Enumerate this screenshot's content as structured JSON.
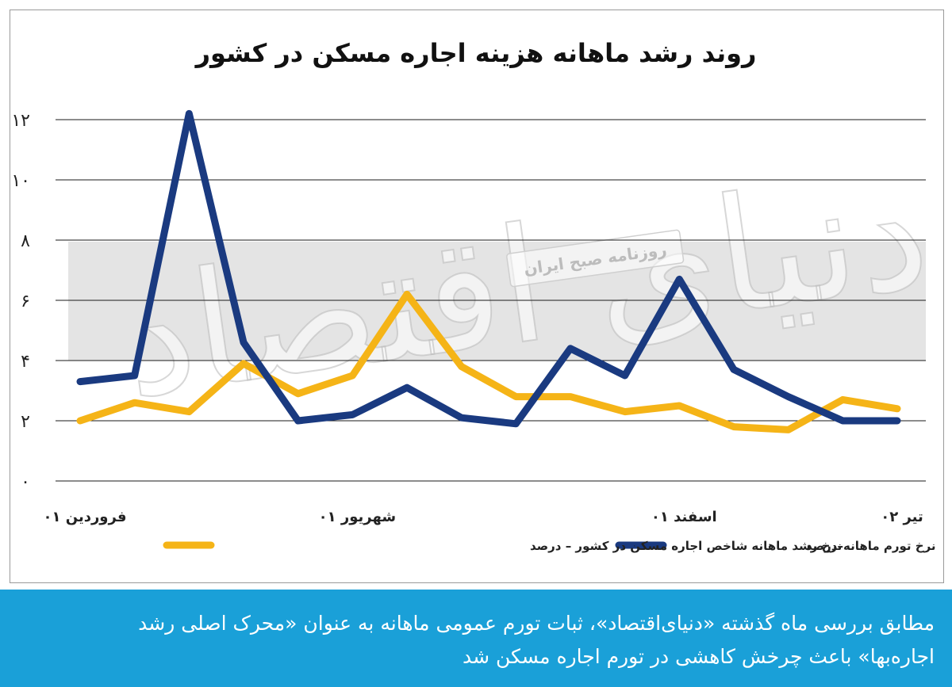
{
  "header": {
    "title": "روند رشد ماهانه هزینه اجاره مسکن در کشور"
  },
  "watermark": {
    "big": "دنیای اقتصاد",
    "badge": "روزنامه صبح ایران"
  },
  "caption": {
    "line1": "مطابق بررسی ماه گذشته «دنیای‌اقتصاد»، ثبات تورم عمومی ماهانه به عنوان «محرک اصلی رشد",
    "line2": "اجاره‌بها» باعث چرخش کاهشی در تورم اجاره مسکن شد"
  },
  "colors": {
    "inflation": "#1a3a80",
    "rent": "#f5b417",
    "caption_bg": "#1aa0d8",
    "watermark_band": "#e4e4e4"
  },
  "chart_data": {
    "type": "line",
    "title": "روند رشد ماهانه هزینه اجاره مسکن در کشور",
    "x_count": 16,
    "x_tick_labels": [
      {
        "index": 0,
        "label": "فروردین ۰۱"
      },
      {
        "index": 5,
        "label": "شهریور ۰۱"
      },
      {
        "index": 11,
        "label": "اسفند ۰۱"
      },
      {
        "index": 15,
        "label": "تیر ۰۲"
      }
    ],
    "y_ticks": [
      0,
      2,
      4,
      6,
      8,
      10,
      12
    ],
    "y_tick_labels": [
      "۰",
      "۲",
      "۴",
      "۶",
      "۸",
      "۱۰",
      "۱۲"
    ],
    "ylim": [
      0,
      12
    ],
    "grid": true,
    "legend_position": "bottom",
    "series": [
      {
        "key": "inflation",
        "name": "نرخ تورم ماهانه–درصد",
        "values": [
          3.3,
          3.5,
          12.2,
          4.6,
          2.0,
          2.2,
          3.1,
          2.1,
          1.9,
          4.4,
          3.5,
          6.7,
          3.7,
          2.8,
          2.0,
          2.0
        ]
      },
      {
        "key": "rent",
        "name": "نرخ رشد ماهانه شاخص اجاره مسکن در کشور – درصد",
        "values": [
          2.0,
          2.6,
          2.3,
          3.9,
          2.9,
          3.5,
          6.2,
          3.8,
          2.8,
          2.8,
          2.3,
          2.5,
          1.8,
          1.7,
          2.7,
          2.4
        ]
      }
    ]
  }
}
